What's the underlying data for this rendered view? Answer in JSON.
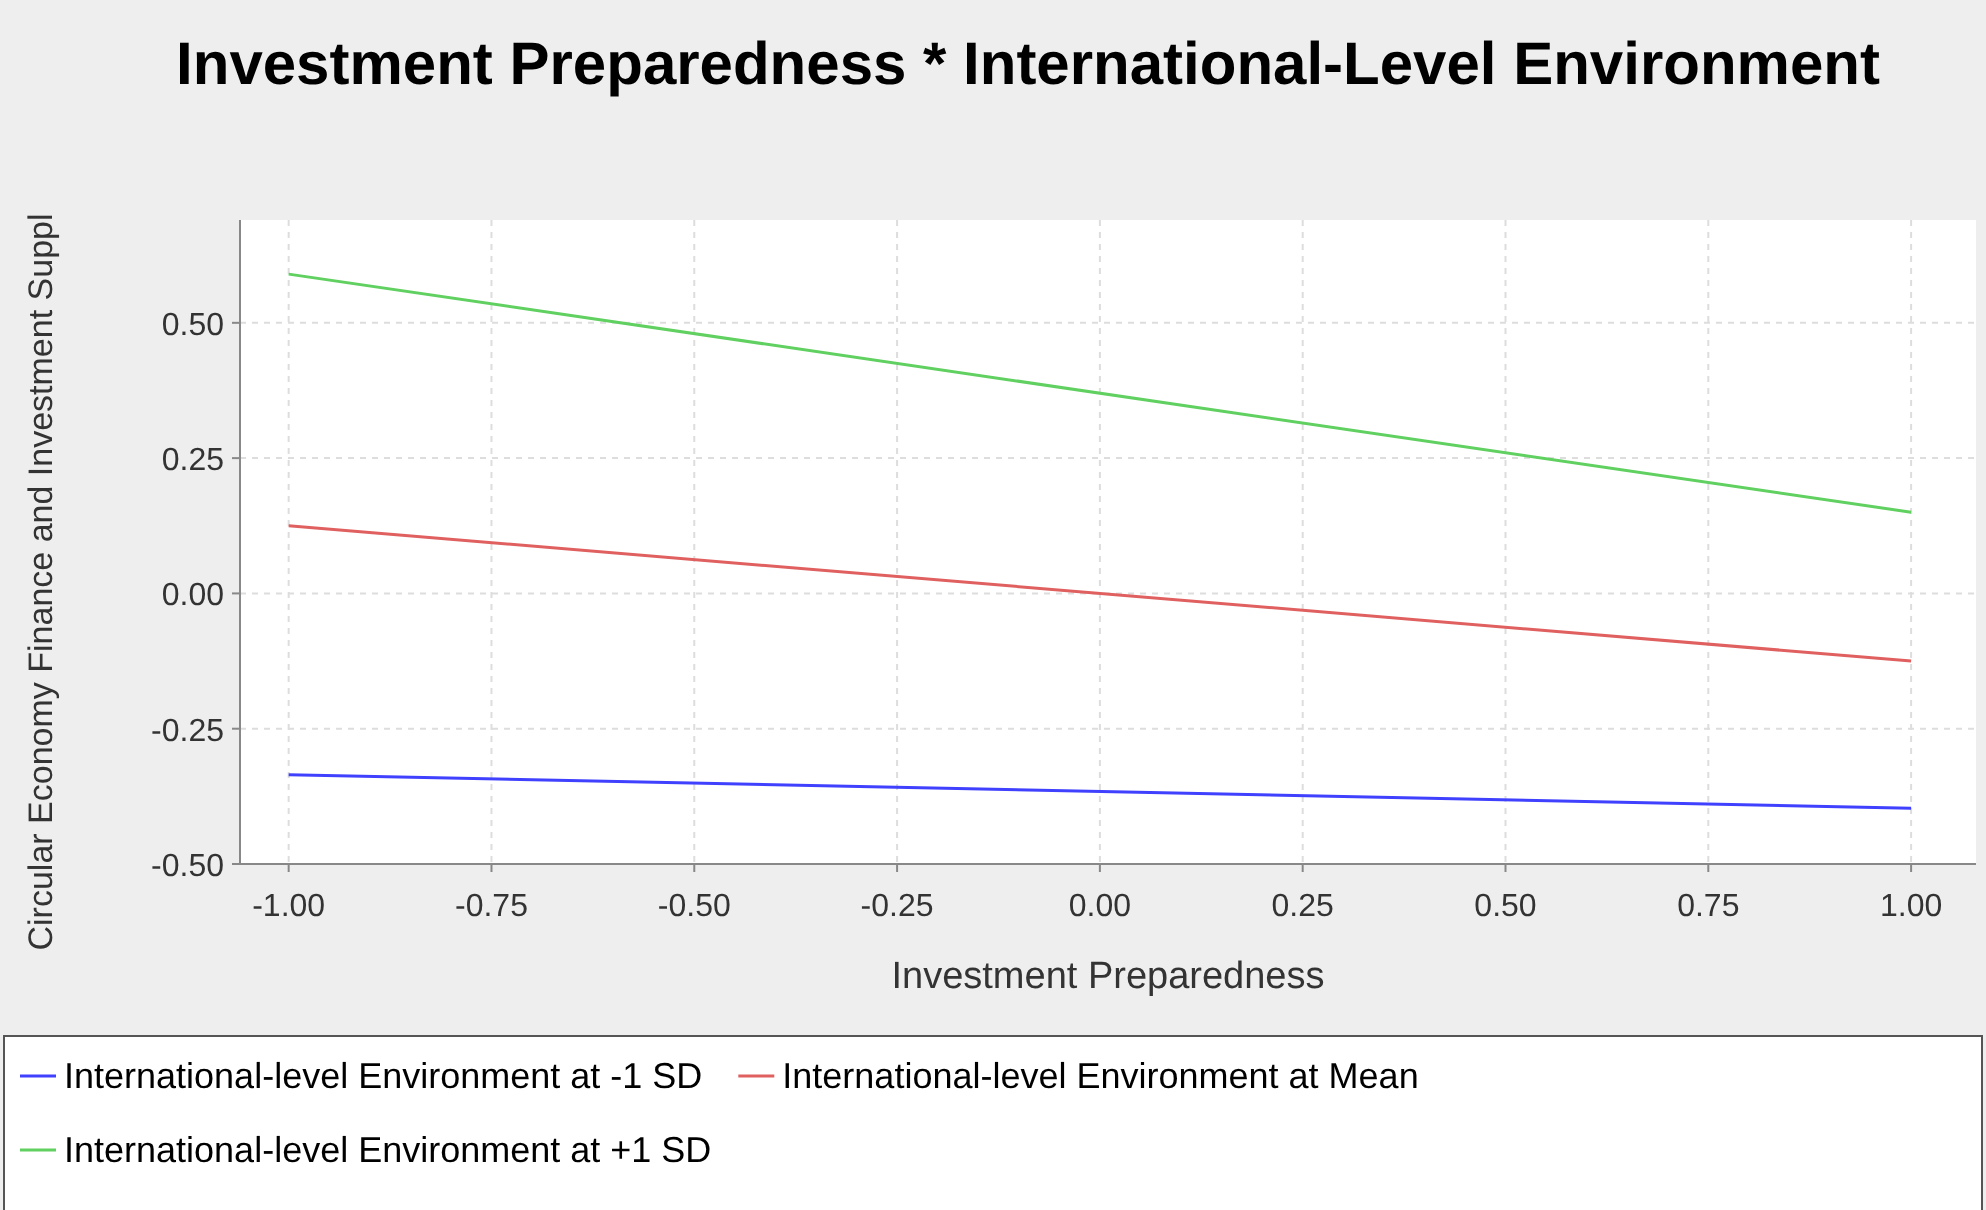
{
  "chart_data": {
    "type": "line",
    "title": "Investment Preparedness * International-Level Environment",
    "xlabel": "Investment Preparedness",
    "ylabel": "Circular Economy Finance and Investment Suppl",
    "x": [
      -1,
      1
    ],
    "series": [
      {
        "name": "International-level Environment at -1 SD",
        "color": "#4040ff",
        "values": [
          -0.335,
          -0.397
        ]
      },
      {
        "name": "International-level Environment at Mean",
        "color": "#e06060",
        "values": [
          0.125,
          -0.125
        ]
      },
      {
        "name": "International-level Environment at +1 SD",
        "color": "#60d060",
        "values": [
          0.59,
          0.15
        ]
      }
    ],
    "xlim": [
      -1.06,
      1.08
    ],
    "xticks": [
      {
        "value": -1,
        "label": "-1.00"
      },
      {
        "value": -0.75,
        "label": "-0.75"
      },
      {
        "value": -0.5,
        "label": "-0.50"
      },
      {
        "value": -0.25,
        "label": "-0.25"
      },
      {
        "value": 0,
        "label": "0.00"
      },
      {
        "value": 0.25,
        "label": "0.25"
      },
      {
        "value": 0.5,
        "label": "0.50"
      },
      {
        "value": 0.75,
        "label": "0.75"
      },
      {
        "value": 1,
        "label": "1.00"
      }
    ],
    "ylim": [
      -0.5,
      0.69
    ],
    "yticks": [
      {
        "value": -0.5,
        "label": "-0.50"
      },
      {
        "value": -0.25,
        "label": "-0.25"
      },
      {
        "value": 0,
        "label": "0.00"
      },
      {
        "value": 0.25,
        "label": "0.25"
      },
      {
        "value": 0.5,
        "label": "0.50"
      }
    ],
    "grid": true,
    "legend": "bottom",
    "marker": "none",
    "line_style": "solid"
  }
}
